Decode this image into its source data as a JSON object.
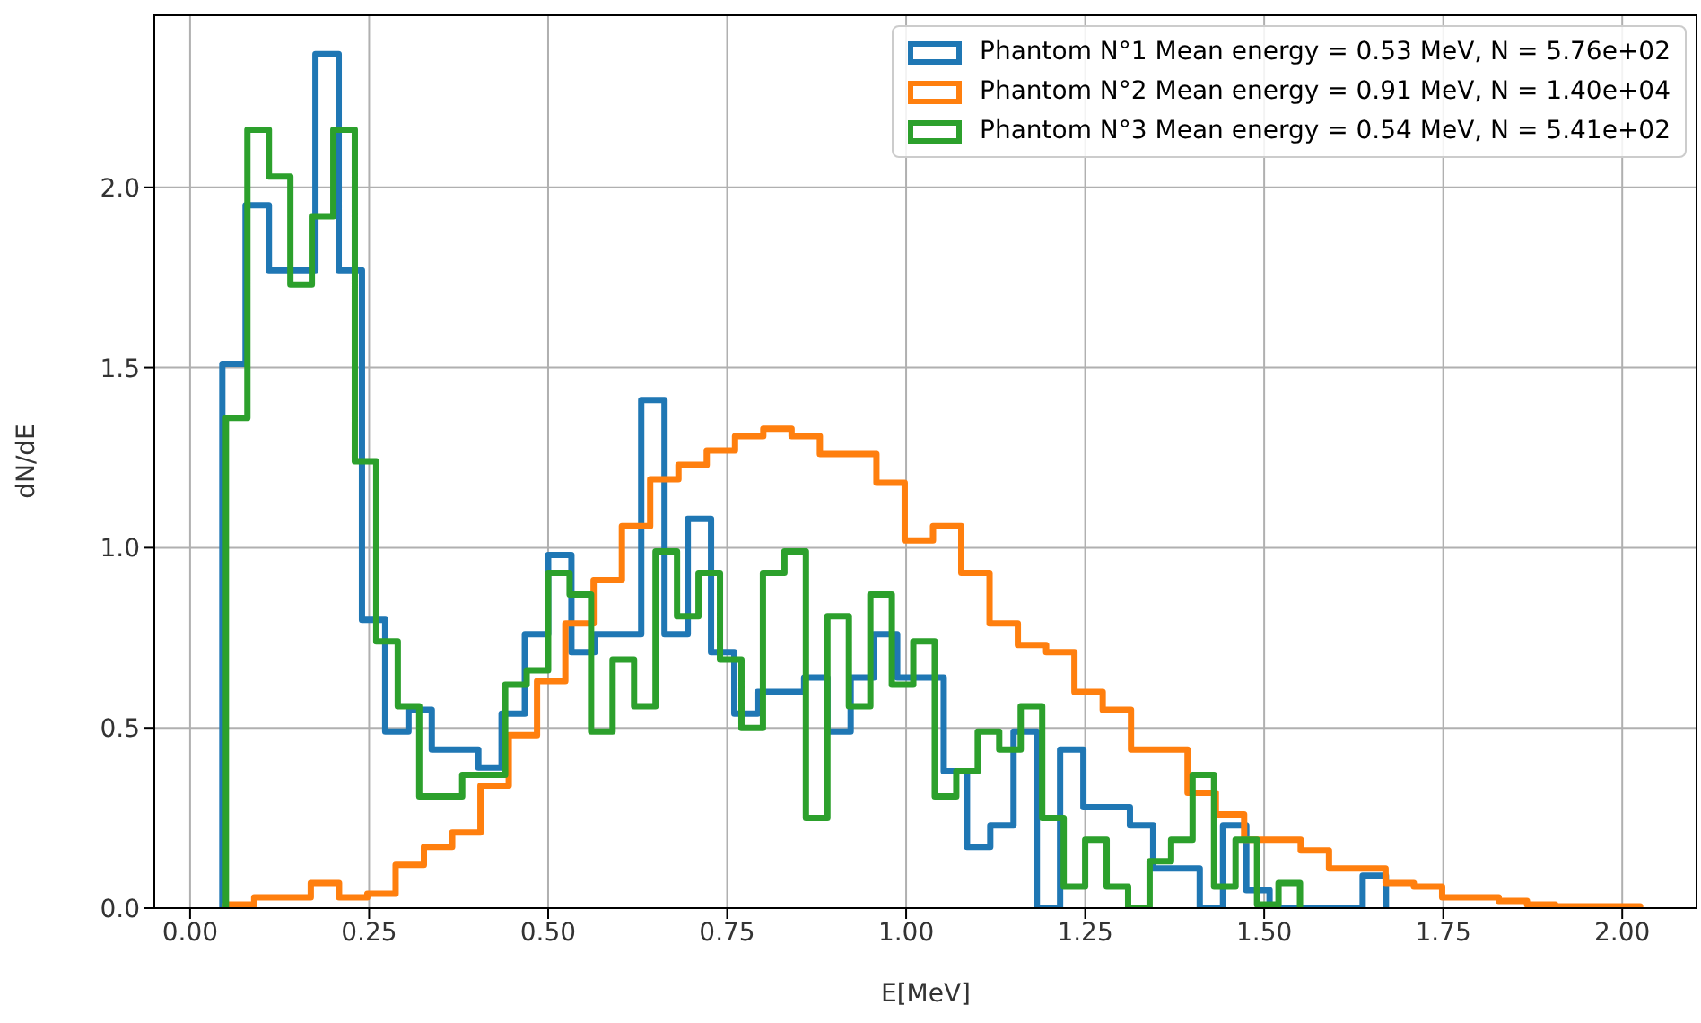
{
  "chart_data": {
    "type": "step",
    "xlabel": "E[MeV]",
    "ylabel": "dN/dE",
    "xlim": [
      -0.05,
      2.105
    ],
    "ylim": [
      0,
      2.48
    ],
    "xticks": [
      {
        "value": 0,
        "label": "0.00"
      },
      {
        "value": 0.25,
        "label": "0.25"
      },
      {
        "value": 0.5,
        "label": "0.50"
      },
      {
        "value": 0.75,
        "label": "0.75"
      },
      {
        "value": 1,
        "label": "1.00"
      },
      {
        "value": 1.25,
        "label": "1.25"
      },
      {
        "value": 1.5,
        "label": "1.50"
      },
      {
        "value": 1.75,
        "label": "1.75"
      },
      {
        "value": 2,
        "label": "2.00"
      }
    ],
    "yticks": [
      {
        "value": 0,
        "label": "0.0"
      },
      {
        "value": 0.5,
        "label": "0.5"
      },
      {
        "value": 1,
        "label": "1.0"
      },
      {
        "value": 1.5,
        "label": "1.5"
      },
      {
        "value": 2,
        "label": "2.0"
      }
    ],
    "grid": true,
    "legend": "top right",
    "series": [
      {
        "name": "Phantom N°1 Mean energy = 0.53 MeV, N = 5.76e+02",
        "color": "#1f77b4",
        "x": [
          0.045,
          0.045,
          0.0775,
          0.11,
          0.1425,
          0.175,
          0.2075,
          0.24,
          0.2725,
          0.305,
          0.3375,
          0.37,
          0.4025,
          0.435,
          0.4675,
          0.5,
          0.5325,
          0.565,
          0.5975,
          0.63,
          0.6625,
          0.695,
          0.7275,
          0.76,
          0.7925,
          0.825,
          0.8575,
          0.89,
          0.9225,
          0.955,
          0.9875,
          1.02,
          1.0525,
          1.085,
          1.1175,
          1.15,
          1.1825,
          1.215,
          1.2475,
          1.28,
          1.3125,
          1.345,
          1.3775,
          1.41,
          1.4425,
          1.475,
          1.5075,
          1.54,
          1.5725,
          1.605,
          1.6375,
          1.67,
          1.67
        ],
        "values": [
          0,
          1.51,
          1.95,
          1.77,
          1.77,
          2.37,
          1.77,
          0.8,
          0.49,
          0.55,
          0.44,
          0.44,
          0.39,
          0.54,
          0.76,
          0.98,
          0.71,
          0.76,
          0.76,
          1.41,
          0.76,
          1.08,
          0.71,
          0.54,
          0.6,
          0.6,
          0.64,
          0.49,
          0.64,
          0.76,
          0.64,
          0.64,
          0.38,
          0.17,
          0.23,
          0.49,
          0.0,
          0.44,
          0.28,
          0.28,
          0.23,
          0.11,
          0.11,
          0.0,
          0.23,
          0.05,
          0.0,
          0.0,
          0.0,
          0.0,
          0.09,
          0.09,
          0
        ]
      },
      {
        "name": "Phantom N°2 Mean energy = 0.91 MeV, N = 1.40e+04",
        "color": "#ff7f0e",
        "x": [
          0.05,
          0.05,
          0.0895,
          0.129,
          0.1685,
          0.208,
          0.2475,
          0.287,
          0.3265,
          0.366,
          0.4055,
          0.445,
          0.4845,
          0.524,
          0.5635,
          0.603,
          0.6425,
          0.682,
          0.7215,
          0.761,
          0.8005,
          0.84,
          0.8795,
          0.919,
          0.9585,
          0.998,
          1.0375,
          1.077,
          1.1165,
          1.156,
          1.1955,
          1.235,
          1.2745,
          1.314,
          1.3535,
          1.393,
          1.4325,
          1.472,
          1.5115,
          1.551,
          1.5905,
          1.63,
          1.6695,
          1.709,
          1.7485,
          1.788,
          1.8275,
          1.867,
          1.9065,
          1.946,
          1.9855,
          2.025,
          2.025
        ],
        "values": [
          0,
          0.01,
          0.03,
          0.03,
          0.07,
          0.03,
          0.04,
          0.12,
          0.17,
          0.21,
          0.34,
          0.48,
          0.63,
          0.79,
          0.91,
          1.06,
          1.19,
          1.23,
          1.27,
          1.31,
          1.33,
          1.31,
          1.26,
          1.26,
          1.18,
          1.02,
          1.06,
          0.93,
          0.79,
          0.73,
          0.71,
          0.6,
          0.55,
          0.44,
          0.44,
          0.32,
          0.26,
          0.19,
          0.19,
          0.16,
          0.11,
          0.11,
          0.07,
          0.06,
          0.03,
          0.03,
          0.02,
          0.01,
          0.005,
          0.005,
          0.005,
          0.005,
          0
        ]
      },
      {
        "name": "Phantom N°3 Mean energy = 0.54 MeV, N = 5.41e+02",
        "color": "#2ca02c",
        "x": [
          0.05,
          0.05,
          0.08,
          0.11,
          0.14,
          0.17,
          0.2,
          0.23,
          0.26,
          0.29,
          0.32,
          0.35,
          0.38,
          0.41,
          0.44,
          0.47,
          0.5,
          0.53,
          0.56,
          0.59,
          0.62,
          0.65,
          0.68,
          0.71,
          0.74,
          0.77,
          0.8,
          0.83,
          0.86,
          0.89,
          0.92,
          0.95,
          0.98,
          1.01,
          1.04,
          1.07,
          1.1,
          1.13,
          1.16,
          1.19,
          1.22,
          1.25,
          1.28,
          1.31,
          1.34,
          1.37,
          1.4,
          1.43,
          1.46,
          1.49,
          1.52,
          1.55,
          1.55
        ],
        "values": [
          0,
          1.36,
          2.16,
          2.03,
          1.73,
          1.92,
          2.16,
          1.24,
          0.74,
          0.56,
          0.31,
          0.31,
          0.37,
          0.37,
          0.62,
          0.66,
          0.93,
          0.87,
          0.49,
          0.69,
          0.56,
          0.99,
          0.81,
          0.93,
          0.69,
          0.5,
          0.93,
          0.99,
          0.25,
          0.81,
          0.56,
          0.87,
          0.62,
          0.74,
          0.31,
          0.38,
          0.49,
          0.44,
          0.56,
          0.25,
          0.06,
          0.19,
          0.06,
          0.0,
          0.13,
          0.19,
          0.37,
          0.06,
          0.19,
          0.01,
          0.07,
          0.07,
          0
        ]
      }
    ]
  }
}
